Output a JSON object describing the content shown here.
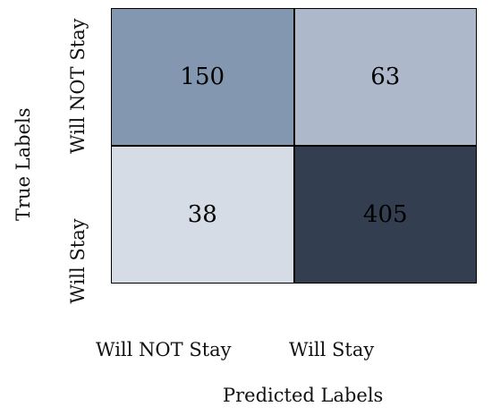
{
  "chart_data": {
    "type": "heatmap",
    "xlabel": "Predicted Labels",
    "ylabel": "True Labels",
    "x_categories": [
      "Will NOT Stay",
      "Will Stay"
    ],
    "y_categories": [
      "Will NOT Stay",
      "Will Stay"
    ],
    "values": [
      [
        150,
        63
      ],
      [
        38,
        405
      ]
    ],
    "colors": [
      [
        "#8497b0",
        "#adb9ca"
      ],
      [
        "#d6dce5",
        "#333f50"
      ]
    ],
    "text_colors": [
      [
        "#000000",
        "#000000"
      ],
      [
        "#000000",
        "#000000"
      ]
    ],
    "border_color": "#000000"
  }
}
